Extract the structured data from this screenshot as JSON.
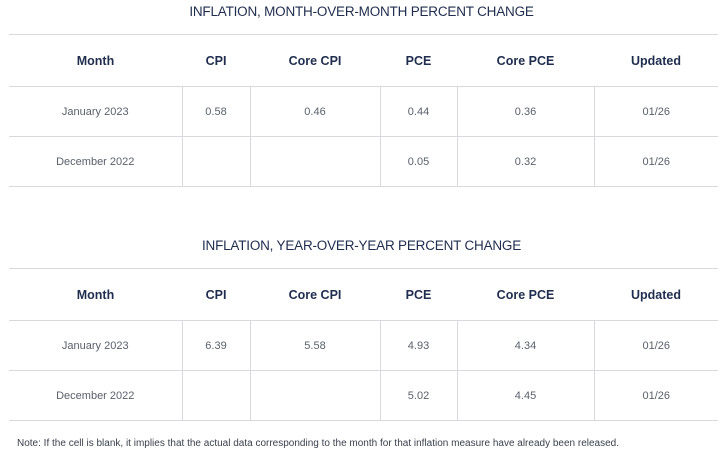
{
  "mom": {
    "title": "INFLATION, MONTH-OVER-MONTH PERCENT CHANGE",
    "headers": [
      "Month",
      "CPI",
      "Core CPI",
      "PCE",
      "Core PCE",
      "Updated"
    ],
    "rows": [
      [
        "January 2023",
        "0.58",
        "0.46",
        "0.44",
        "0.36",
        "01/26"
      ],
      [
        "December 2022",
        "",
        "",
        "0.05",
        "0.32",
        "01/26"
      ]
    ]
  },
  "yoy": {
    "title": "INFLATION, YEAR-OVER-YEAR PERCENT CHANGE",
    "headers": [
      "Month",
      "CPI",
      "Core CPI",
      "PCE",
      "Core PCE",
      "Updated"
    ],
    "rows": [
      [
        "January 2023",
        "6.39",
        "5.58",
        "4.93",
        "4.34",
        "01/26"
      ],
      [
        "December 2022",
        "",
        "",
        "5.02",
        "4.45",
        "01/26"
      ]
    ]
  },
  "note": "Note: If the cell is blank, it implies that the actual data corresponding to the month for that inflation measure have already been released."
}
